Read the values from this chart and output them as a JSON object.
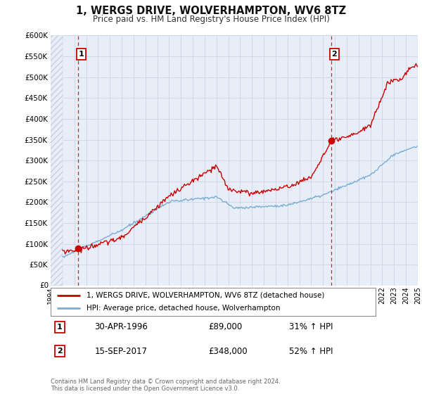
{
  "title": "1, WERGS DRIVE, WOLVERHAMPTON, WV6 8TZ",
  "subtitle": "Price paid vs. HM Land Registry's House Price Index (HPI)",
  "property_label": "1, WERGS DRIVE, WOLVERHAMPTON, WV6 8TZ (detached house)",
  "hpi_label": "HPI: Average price, detached house, Wolverhampton",
  "property_color": "#cc0000",
  "hpi_color": "#7aadd4",
  "marker1_date": 1996.33,
  "marker2_date": 2017.71,
  "marker1_price": 89000,
  "marker2_price": 348000,
  "marker1_label": "1",
  "marker2_label": "2",
  "annotation1_date": "30-APR-1996",
  "annotation1_price": "£89,000",
  "annotation1_hpi": "31% ↑ HPI",
  "annotation2_date": "15-SEP-2017",
  "annotation2_price": "£348,000",
  "annotation2_hpi": "52% ↑ HPI",
  "ylim": [
    0,
    600000
  ],
  "yticks": [
    50000,
    100000,
    150000,
    200000,
    250000,
    300000,
    350000,
    400000,
    450000,
    500000,
    550000,
    600000
  ],
  "xlim_start": 1994,
  "xlim_end": 2025,
  "background_color": "#ffffff",
  "chart_bg_color": "#e8eef8",
  "grid_color": "#d0d8e8",
  "hatch_color": "#c8d0e0",
  "footer": "Contains HM Land Registry data © Crown copyright and database right 2024.\nThis data is licensed under the Open Government Licence v3.0."
}
